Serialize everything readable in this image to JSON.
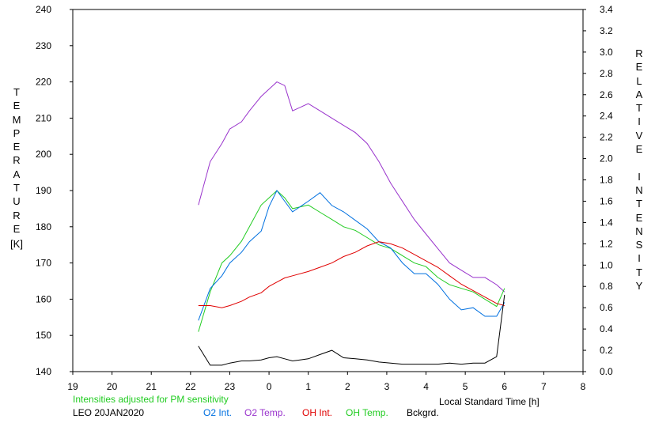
{
  "chart_data": {
    "type": "line",
    "xlabel": "Local Standard Time [h]",
    "ylabel_left": [
      "T",
      "E",
      "M",
      "P",
      "E",
      "R",
      "A",
      "T",
      "U",
      "R",
      "E"
    ],
    "ylabel_left_unit": "[K]",
    "ylabel_right": [
      "R",
      "E",
      "L",
      "A",
      "T",
      "I",
      "V",
      "E",
      "",
      "I",
      "N",
      "T",
      "E",
      "N",
      "S",
      "I",
      "T",
      "Y"
    ],
    "xlim": [
      19,
      32
    ],
    "x_tick_labels": [
      "19",
      "20",
      "21",
      "22",
      "23",
      "0",
      "1",
      "2",
      "3",
      "4",
      "5",
      "6",
      "7",
      "8"
    ],
    "ylim_left": [
      140,
      240
    ],
    "y_left_tick_labels": [
      "140",
      "150",
      "160",
      "170",
      "180",
      "190",
      "200",
      "210",
      "220",
      "230",
      "240"
    ],
    "ylim_right": [
      0.0,
      3.4
    ],
    "y_right_tick_labels": [
      "0.0",
      "0.2",
      "0.4",
      "0.6",
      "0.8",
      "1.0",
      "1.2",
      "1.4",
      "1.6",
      "1.8",
      "2.0",
      "2.2",
      "2.4",
      "2.6",
      "2.8",
      "3.0",
      "3.2",
      "3.4"
    ],
    "note": "Intensities adjusted for PM sensitivity",
    "station": "LEO 20JAN2020",
    "colors": {
      "o2_int": "#0070e0",
      "o2_temp": "#9933cc",
      "oh_int": "#e00000",
      "oh_temp": "#22cc22",
      "bckgrd": "#000000",
      "note": "#22cc22"
    },
    "series": [
      {
        "name": "O2 Int.",
        "axis": "right",
        "color": "#0070e0",
        "x": [
          22.2,
          22.5,
          22.8,
          23.0,
          23.3,
          23.5,
          23.8,
          24.0,
          24.2,
          24.4,
          24.6,
          25.0,
          25.3,
          25.6,
          25.9,
          26.2,
          26.5,
          26.8,
          27.1,
          27.4,
          27.7,
          28.0,
          28.3,
          28.6,
          28.9,
          29.2,
          29.5,
          29.8,
          30.0
        ],
        "y": [
          0.48,
          0.78,
          0.9,
          1.02,
          1.12,
          1.22,
          1.32,
          1.55,
          1.7,
          1.6,
          1.5,
          1.6,
          1.68,
          1.56,
          1.5,
          1.42,
          1.34,
          1.22,
          1.16,
          1.02,
          0.92,
          0.92,
          0.82,
          0.68,
          0.58,
          0.6,
          0.52,
          0.52,
          0.65
        ]
      },
      {
        "name": "O2 Temp.",
        "axis": "left",
        "color": "#9933cc",
        "x": [
          22.2,
          22.5,
          22.8,
          23.0,
          23.3,
          23.5,
          23.8,
          24.0,
          24.2,
          24.4,
          24.6,
          25.0,
          25.3,
          25.6,
          25.9,
          26.2,
          26.5,
          26.8,
          27.1,
          27.4,
          27.7,
          28.0,
          28.3,
          28.6,
          28.9,
          29.2,
          29.5,
          29.8,
          30.0
        ],
        "y": [
          186,
          198,
          203,
          207,
          209,
          212,
          216,
          218,
          220,
          219,
          212,
          214,
          212,
          210,
          208,
          206,
          203,
          198,
          192,
          187,
          182,
          178,
          174,
          170,
          168,
          166,
          166,
          164,
          162
        ]
      },
      {
        "name": "OH Int.",
        "axis": "right",
        "color": "#e00000",
        "x": [
          22.2,
          22.5,
          22.8,
          23.0,
          23.3,
          23.5,
          23.8,
          24.0,
          24.2,
          24.4,
          24.6,
          25.0,
          25.3,
          25.6,
          25.9,
          26.2,
          26.5,
          26.8,
          27.1,
          27.4,
          27.7,
          28.0,
          28.3,
          28.6,
          28.9,
          29.2,
          29.5,
          29.8,
          30.0
        ],
        "y": [
          0.62,
          0.62,
          0.6,
          0.62,
          0.66,
          0.7,
          0.74,
          0.8,
          0.84,
          0.88,
          0.9,
          0.94,
          0.98,
          1.02,
          1.08,
          1.12,
          1.18,
          1.22,
          1.2,
          1.16,
          1.1,
          1.04,
          0.98,
          0.9,
          0.82,
          0.76,
          0.7,
          0.64,
          0.62
        ]
      },
      {
        "name": "OH Temp.",
        "axis": "left",
        "color": "#22cc22",
        "x": [
          22.2,
          22.5,
          22.8,
          23.0,
          23.3,
          23.5,
          23.8,
          24.0,
          24.2,
          24.4,
          24.6,
          25.0,
          25.3,
          25.6,
          25.9,
          26.2,
          26.5,
          26.8,
          27.1,
          27.4,
          27.7,
          28.0,
          28.3,
          28.6,
          28.9,
          29.2,
          29.5,
          29.8,
          30.0
        ],
        "y": [
          151,
          162,
          170,
          172,
          176,
          180,
          186,
          188,
          190,
          188,
          185,
          186,
          184,
          182,
          180,
          179,
          177,
          175,
          174,
          172,
          170,
          169,
          166,
          164,
          163,
          162,
          160,
          158,
          163
        ]
      },
      {
        "name": "Bckgrd.",
        "axis": "right",
        "color": "#000000",
        "x": [
          22.2,
          22.5,
          22.8,
          23.0,
          23.3,
          23.5,
          23.8,
          24.0,
          24.2,
          24.4,
          24.6,
          25.0,
          25.3,
          25.6,
          25.9,
          26.2,
          26.5,
          26.8,
          27.1,
          27.4,
          27.7,
          28.0,
          28.3,
          28.6,
          28.9,
          29.2,
          29.5,
          29.8,
          30.0
        ],
        "y": [
          0.24,
          0.06,
          0.06,
          0.08,
          0.1,
          0.1,
          0.11,
          0.13,
          0.14,
          0.12,
          0.1,
          0.12,
          0.16,
          0.2,
          0.13,
          0.12,
          0.11,
          0.09,
          0.08,
          0.07,
          0.07,
          0.07,
          0.07,
          0.08,
          0.07,
          0.08,
          0.08,
          0.14,
          0.72
        ]
      }
    ]
  }
}
